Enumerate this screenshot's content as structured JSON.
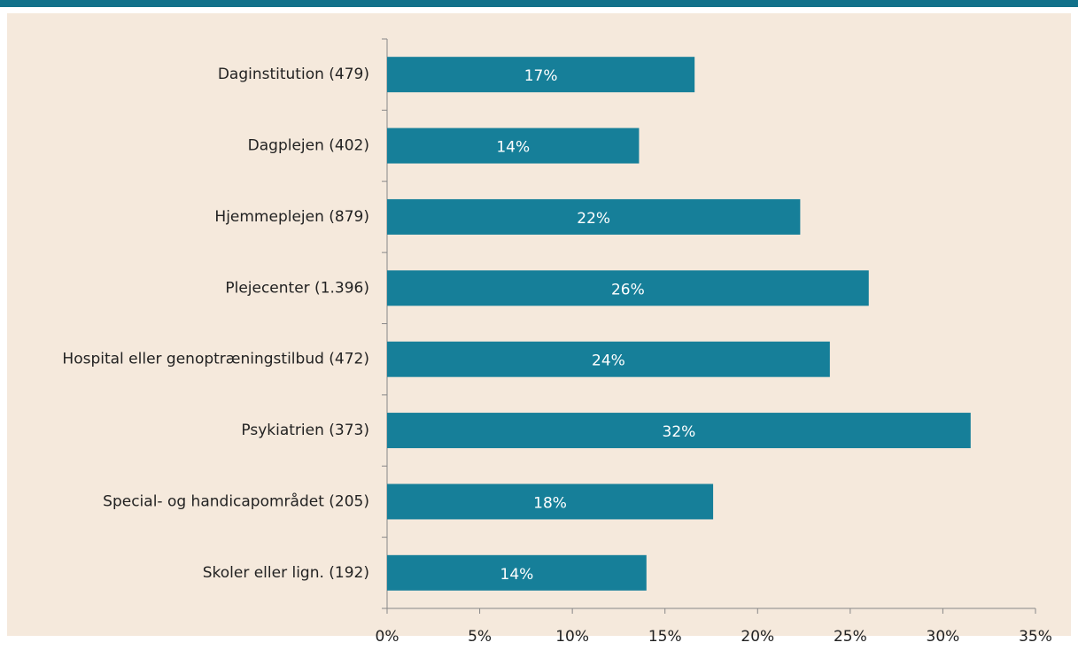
{
  "chart_data": {
    "type": "bar",
    "orientation": "horizontal",
    "categories": [
      "Daginstitution (479)",
      "Dagplejen (402)",
      "Hjemmeplejen (879)",
      "Plejecenter (1.396)",
      "Hospital eller genoptræningstilbud (472)",
      "Psykiatrien (373)",
      "Special- og handicapområdet (205)",
      "Skoler eller lign. (192)"
    ],
    "values": [
      16.6,
      13.6,
      22.3,
      26.0,
      23.9,
      31.5,
      17.6,
      14.0
    ],
    "value_labels": [
      "17%",
      "14%",
      "22%",
      "26%",
      "24%",
      "32%",
      "18%",
      "14%"
    ],
    "color": "#167f99",
    "xlim": [
      0,
      35
    ],
    "xticks": [
      {
        "value": 0,
        "label": "0%"
      },
      {
        "value": 5,
        "label": "5%"
      },
      {
        "value": 10,
        "label": "10%"
      },
      {
        "value": 15,
        "label": "15%"
      },
      {
        "value": 20,
        "label": "20%"
      },
      {
        "value": 25,
        "label": "25%"
      },
      {
        "value": 30,
        "label": "30%"
      },
      {
        "value": 35,
        "label": "35%"
      }
    ],
    "grid": false
  }
}
